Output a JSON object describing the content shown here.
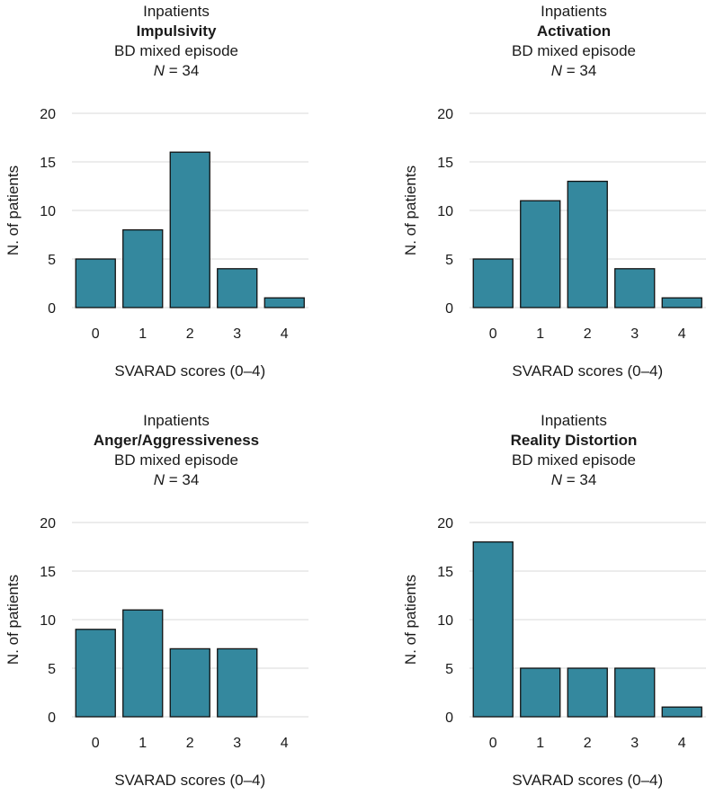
{
  "style": {
    "bar_color": "#34889e",
    "grid_color": "#e0e0e0"
  },
  "chart_data": [
    {
      "type": "bar",
      "setting": "Inpatients",
      "title": "Impulsivity",
      "subtitle": "BD mixed episode",
      "n_label": "N",
      "n_value": "= 34",
      "categories": [
        "0",
        "1",
        "2",
        "3",
        "4"
      ],
      "values": [
        5,
        8,
        16,
        4,
        1
      ],
      "xlabel": "SVARAD scores (0–4)",
      "ylabel": "N. of patients",
      "ylim": [
        0,
        20
      ],
      "yticks": [
        "0",
        "5",
        "10",
        "15",
        "20"
      ],
      "grid": true
    },
    {
      "type": "bar",
      "setting": "Inpatients",
      "title": "Activation",
      "subtitle": "BD mixed episode",
      "n_label": "N",
      "n_value": "= 34",
      "categories": [
        "0",
        "1",
        "2",
        "3",
        "4"
      ],
      "values": [
        5,
        11,
        13,
        4,
        1
      ],
      "xlabel": "SVARAD scores (0–4)",
      "ylabel": "N. of patients",
      "ylim": [
        0,
        20
      ],
      "yticks": [
        "0",
        "5",
        "10",
        "15",
        "20"
      ],
      "grid": true
    },
    {
      "type": "bar",
      "setting": "Inpatients",
      "title": "Anger/Aggressiveness",
      "subtitle": "BD mixed episode",
      "n_label": "N",
      "n_value": "= 34",
      "categories": [
        "0",
        "1",
        "2",
        "3",
        "4"
      ],
      "values": [
        9,
        11,
        7,
        7,
        0
      ],
      "xlabel": "SVARAD scores (0–4)",
      "ylabel": "N. of patients",
      "ylim": [
        0,
        20
      ],
      "yticks": [
        "0",
        "5",
        "10",
        "15",
        "20"
      ],
      "grid": true
    },
    {
      "type": "bar",
      "setting": "Inpatients",
      "title": "Reality Distortion",
      "subtitle": "BD mixed episode",
      "n_label": "N",
      "n_value": "= 34",
      "categories": [
        "0",
        "1",
        "2",
        "3",
        "4"
      ],
      "values": [
        18,
        5,
        5,
        5,
        1
      ],
      "xlabel": "SVARAD scores (0–4)",
      "ylabel": "N. of patients",
      "ylim": [
        0,
        20
      ],
      "yticks": [
        "0",
        "5",
        "10",
        "15",
        "20"
      ],
      "grid": true
    }
  ]
}
